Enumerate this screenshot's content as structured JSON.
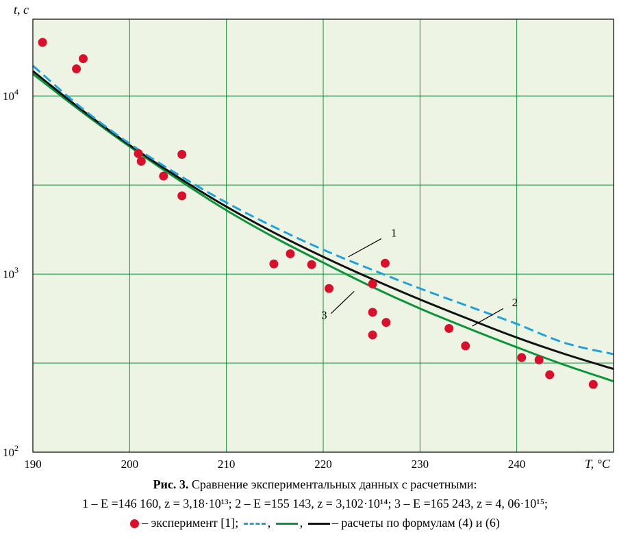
{
  "chart_data": {
    "type": "line",
    "ylabel": "t, c",
    "xlabel": "T, °C",
    "x_ticks": [
      "190",
      "200",
      "210",
      "220",
      "230",
      "240"
    ],
    "y_ticks": [
      {
        "base": "10",
        "exp": "2",
        "value": 100
      },
      {
        "base": "10",
        "exp": "3",
        "value": 1000
      },
      {
        "base": "10",
        "exp": "4",
        "value": 10000
      }
    ],
    "xlim": [
      190,
      250
    ],
    "ylim": [
      100,
      27000
    ],
    "y_scale": "log",
    "grid": true,
    "series": [
      {
        "name": "1",
        "color": "#1fa2dc",
        "style": "dashed",
        "x": [
          190,
          195,
          200,
          205,
          210,
          215,
          220,
          225,
          230,
          235,
          240,
          245,
          250
        ],
        "y": [
          14800,
          8600,
          5400,
          3620,
          2520,
          1830,
          1370,
          1060,
          830,
          660,
          525,
          410,
          355
        ]
      },
      {
        "name": "2",
        "color": "#0a9438",
        "style": "solid",
        "x": [
          190,
          195,
          200,
          205,
          210,
          215,
          220,
          225,
          230,
          235,
          240,
          245,
          250
        ],
        "y": [
          13300,
          8200,
          5200,
          3400,
          2280,
          1600,
          1160,
          850,
          640,
          495,
          388,
          308,
          250
        ]
      },
      {
        "name": "3",
        "color": "#111111",
        "style": "solid",
        "x": [
          190,
          195,
          200,
          205,
          210,
          215,
          220,
          225,
          230,
          235,
          240,
          245,
          250
        ],
        "y": [
          13800,
          8400,
          5300,
          3500,
          2390,
          1700,
          1250,
          940,
          720,
          560,
          440,
          355,
          293
        ]
      }
    ],
    "scatter": {
      "name": "эксперимент [1]",
      "color": "#d9102c",
      "points": [
        {
          "x": 191.0,
          "y": 20000
        },
        {
          "x": 194.5,
          "y": 14200
        },
        {
          "x": 195.2,
          "y": 16200
        },
        {
          "x": 200.9,
          "y": 4750
        },
        {
          "x": 201.2,
          "y": 4300
        },
        {
          "x": 203.5,
          "y": 3550
        },
        {
          "x": 205.4,
          "y": 4700
        },
        {
          "x": 205.4,
          "y": 2750
        },
        {
          "x": 214.9,
          "y": 1140
        },
        {
          "x": 216.6,
          "y": 1300
        },
        {
          "x": 218.8,
          "y": 1130
        },
        {
          "x": 220.6,
          "y": 830
        },
        {
          "x": 225.1,
          "y": 880
        },
        {
          "x": 225.1,
          "y": 610
        },
        {
          "x": 225.1,
          "y": 455
        },
        {
          "x": 226.4,
          "y": 1150
        },
        {
          "x": 226.5,
          "y": 535
        },
        {
          "x": 233.0,
          "y": 495
        },
        {
          "x": 234.7,
          "y": 395
        },
        {
          "x": 240.5,
          "y": 340
        },
        {
          "x": 242.3,
          "y": 330
        },
        {
          "x": 243.4,
          "y": 272
        },
        {
          "x": 247.9,
          "y": 240
        }
      ]
    },
    "annotations": [
      {
        "text": "1",
        "series": "1"
      },
      {
        "text": "2",
        "series": "2"
      },
      {
        "text": "3",
        "series": "3"
      }
    ]
  },
  "caption": {
    "title_bold": "Рис. 3.",
    "title": "Сравнение экспериментальных данных с расчетными:",
    "line2": "1 – E =146 160, z = 3,18·10¹³;  2 – E =155 143, z = 3,102·10¹⁴;  3 – E =165 243, z = 4, 06·10¹⁵;",
    "legend_exp": "– эксперимент [1];",
    "legend_sep1": ",",
    "legend_sep2": ",",
    "legend_calc": "– расчеты по формулам (4) и (6)"
  }
}
